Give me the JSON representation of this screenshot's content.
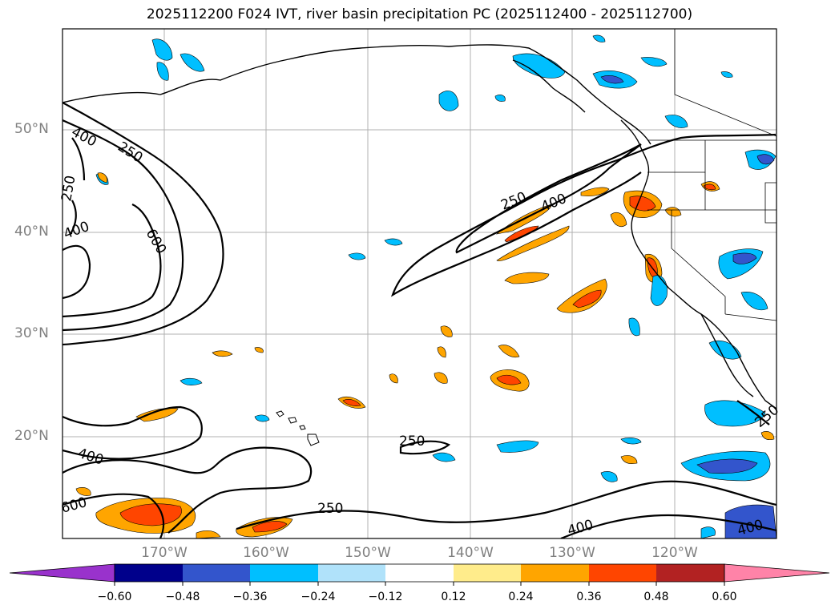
{
  "title": "2025112200 F024 IVT, river basin precipitation PC (2025112400 - 2025112700)",
  "lat_labels": [
    "50°N",
    "40°N",
    "30°N",
    "20°N"
  ],
  "lon_labels": [
    "170°W",
    "160°W",
    "150°W",
    "140°W",
    "130°W",
    "120°W"
  ],
  "contour_labels": [
    "400",
    "250",
    "250",
    "400",
    "600",
    "250",
    "400",
    "250",
    "400",
    "250",
    "400",
    "400",
    "250",
    "600"
  ],
  "colorbar": {
    "ticks": [
      "−0.60",
      "−0.48",
      "−0.36",
      "−0.24",
      "−0.12",
      "0.12",
      "0.24",
      "0.36",
      "0.48",
      "0.60"
    ],
    "colors": [
      "#9932cc",
      "#3d1fd6",
      "#00008b",
      "#3355cc",
      "#00bfff",
      "#b0e2fa",
      "#ffffff",
      "#ffec8b",
      "#ffa500",
      "#ff4500",
      "#b22222",
      "#ff83a8"
    ]
  }
}
